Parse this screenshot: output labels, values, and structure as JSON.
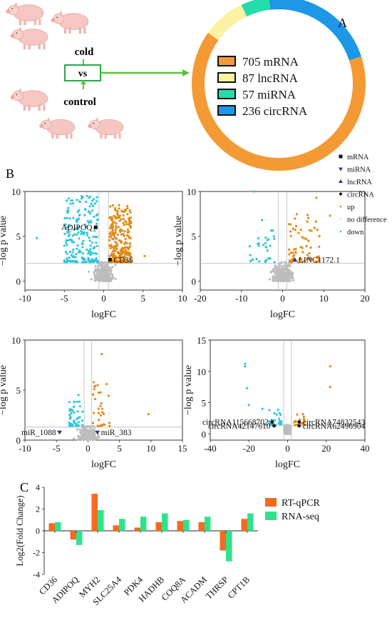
{
  "panel_labels": {
    "a": "A",
    "b": "B",
    "c": "C"
  },
  "experiment": {
    "treatment": "cold",
    "vs": "vs",
    "control": "control"
  },
  "colors": {
    "mrna": "#f39a35",
    "lncrna": "#fbf3a2",
    "mirna": "#23dcaa",
    "circrna": "#1d97e6",
    "up": "#e38a14",
    "down": "#2fc6dd",
    "nodiff": "#bdbdbd",
    "rtqpcr": "#f26b21",
    "rnaseq": "#2fe38a",
    "arrow": "#5cc43a"
  },
  "ring_chart": {
    "type": "pie",
    "slices": [
      {
        "label": "705 mRNA",
        "value": 705,
        "color": "#f39a35"
      },
      {
        "label": "87 lncRNA",
        "value": 87,
        "color": "#fbf3a2"
      },
      {
        "label": "57 miRNA",
        "value": 57,
        "color": "#23dcaa"
      },
      {
        "label": "236 circRNA",
        "value": 236,
        "color": "#1d97e6"
      }
    ]
  },
  "volcano_legend": [
    "mRNA",
    "miRNA",
    "lncRNA",
    "circRNA",
    "up",
    "no difference",
    "down"
  ],
  "chart_data": [
    {
      "type": "scatter",
      "title": "",
      "xlabel": "logFC",
      "ylabel": "−log p value",
      "xlim": [
        -10,
        10
      ],
      "ylim": [
        -1,
        10
      ],
      "xticks": [
        -10,
        -5,
        0,
        5,
        10
      ],
      "yticks": [
        0,
        5,
        10
      ],
      "threshold_y": 2,
      "threshold_x": [
        -0.6,
        0.6
      ],
      "labeled_points": [
        {
          "label": "ADIPOQ",
          "x": -1.0,
          "y": 6.0,
          "marker": "square",
          "label_side": "left"
        },
        {
          "label": "CD36",
          "x": 0.8,
          "y": 2.4,
          "marker": "square",
          "label_side": "right"
        }
      ]
    },
    {
      "type": "scatter",
      "title": "",
      "xlabel": "logFC",
      "ylabel": "−log p value",
      "xlim": [
        -20,
        20
      ],
      "ylim": [
        -1,
        10
      ],
      "xticks": [
        -20,
        -10,
        0,
        10,
        20
      ],
      "yticks": [
        0,
        5,
        10
      ],
      "threshold_y": 2,
      "threshold_x": [
        -1,
        1
      ],
      "labeled_points": [
        {
          "label": "LINC1172.1",
          "x": 3.0,
          "y": 2.4,
          "marker": "triangle",
          "label_side": "right"
        }
      ]
    },
    {
      "type": "scatter",
      "title": "",
      "xlabel": "logFC",
      "ylabel": "−log p value",
      "xlim": [
        -10,
        15
      ],
      "ylim": [
        0,
        10
      ],
      "xticks": [
        -10,
        -5,
        0,
        5,
        10,
        15
      ],
      "yticks": [
        0,
        5,
        10
      ],
      "threshold_y": 1.3,
      "threshold_x": [
        -0.6,
        0.6
      ],
      "labeled_points": [
        {
          "label": "miR_1088",
          "x": -4.5,
          "y": 0.8,
          "marker": "triangle-down",
          "label_side": "left"
        },
        {
          "label": "miR_383",
          "x": 1.5,
          "y": 0.8,
          "marker": "triangle-down",
          "label_side": "right"
        }
      ]
    },
    {
      "type": "scatter",
      "title": "",
      "xlabel": "logFC",
      "ylabel": "−log p value",
      "xlim": [
        -40,
        40
      ],
      "ylim": [
        -1,
        15
      ],
      "xticks": [
        -40,
        -20,
        0,
        20,
        40
      ],
      "yticks": [
        0,
        5,
        10,
        15
      ],
      "threshold_y": 1.3,
      "threshold_x": [
        -2,
        2
      ],
      "labeled_points": [
        {
          "label": "circRNA115668702",
          "x": -8.0,
          "y": 1.9,
          "marker": "dot",
          "label_side": "left"
        },
        {
          "label": "circRNA42147610",
          "x": -7.0,
          "y": 1.3,
          "marker": "dot",
          "label_side": "left"
        },
        {
          "label": "circRNA74832543",
          "x": 6.0,
          "y": 1.9,
          "marker": "dot",
          "label_side": "right"
        },
        {
          "label": "circRNA62496904",
          "x": 6.0,
          "y": 1.3,
          "marker": "dot",
          "label_side": "right"
        }
      ]
    },
    {
      "type": "bar",
      "title": "",
      "xlabel": "",
      "ylabel": "Log2(Fold Change)",
      "ylim": [
        -4,
        4
      ],
      "yticks": [
        -4,
        -2,
        0,
        2,
        4
      ],
      "categories": [
        "CD36",
        "ADIPOQ",
        "MYH2",
        "SLC25A4",
        "PDK4",
        "HADHB",
        "COQ8A",
        "ACADM",
        "THRSP",
        "CPT1B"
      ],
      "series": [
        {
          "name": "RT-qPCR",
          "color": "#f26b21",
          "values": [
            0.7,
            -0.8,
            3.4,
            0.5,
            0.3,
            0.8,
            0.9,
            0.8,
            -1.8,
            1.1
          ]
        },
        {
          "name": "RNA-seq",
          "color": "#2fe38a",
          "values": [
            0.8,
            -1.3,
            1.9,
            1.1,
            1.3,
            1.6,
            1.0,
            1.3,
            -2.8,
            1.6
          ]
        }
      ]
    }
  ]
}
